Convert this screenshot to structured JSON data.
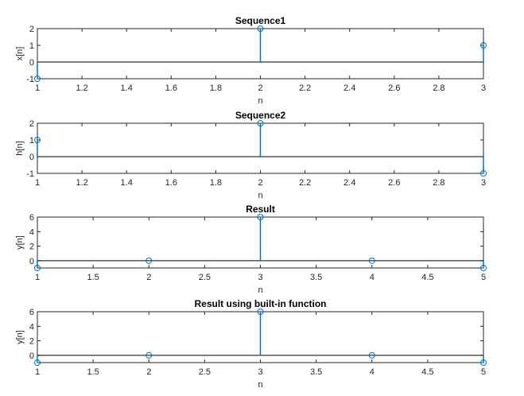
{
  "figure": {
    "background": "#ffffff",
    "stem_color": "#0072BD",
    "baseline_color": "#000000",
    "axis_color": "#262626"
  },
  "chart_data": [
    {
      "type": "stem",
      "title": "Sequence1",
      "xlabel": "n",
      "ylabel": "x[n]",
      "x": [
        1,
        2,
        3
      ],
      "values": [
        -1,
        2,
        1
      ],
      "xlim": [
        1,
        3
      ],
      "ylim": [
        -1,
        2
      ],
      "xticks": [
        1,
        1.2,
        1.4,
        1.6,
        1.8,
        2,
        2.2,
        2.4,
        2.6,
        2.8,
        3
      ],
      "xtick_labels": [
        "1",
        "1.2",
        "1.4",
        "1.6",
        "1.8",
        "2",
        "2.2",
        "2.4",
        "2.6",
        "2.8",
        "3"
      ],
      "yticks": [
        -1,
        0,
        1,
        2
      ],
      "ytick_labels": [
        "-1",
        "0",
        "1",
        "2"
      ],
      "grid": false
    },
    {
      "type": "stem",
      "title": "Sequence2",
      "xlabel": "n",
      "ylabel": "h[n]",
      "x": [
        1,
        2,
        3
      ],
      "values": [
        1,
        2,
        -1
      ],
      "xlim": [
        1,
        3
      ],
      "ylim": [
        -1,
        2
      ],
      "xticks": [
        1,
        1.2,
        1.4,
        1.6,
        1.8,
        2,
        2.2,
        2.4,
        2.6,
        2.8,
        3
      ],
      "xtick_labels": [
        "1",
        "1.2",
        "1.4",
        "1.6",
        "1.8",
        "2",
        "2.2",
        "2.4",
        "2.6",
        "2.8",
        "3"
      ],
      "yticks": [
        -1,
        0,
        1,
        2
      ],
      "ytick_labels": [
        "-1",
        "0",
        "1",
        "2"
      ],
      "grid": false
    },
    {
      "type": "stem",
      "title": "Result",
      "xlabel": "n",
      "ylabel": "y[n]",
      "x": [
        1,
        2,
        3,
        4,
        5
      ],
      "values": [
        -1,
        0,
        6,
        0,
        -1
      ],
      "xlim": [
        1,
        5
      ],
      "ylim": [
        -1,
        6
      ],
      "xticks": [
        1,
        1.5,
        2,
        2.5,
        3,
        3.5,
        4,
        4.5,
        5
      ],
      "xtick_labels": [
        "1",
        "1.5",
        "2",
        "2.5",
        "3",
        "3.5",
        "4",
        "4.5",
        "5"
      ],
      "yticks": [
        0,
        2,
        4,
        6
      ],
      "ytick_labels": [
        "0",
        "2",
        "4",
        "6"
      ],
      "grid": false
    },
    {
      "type": "stem",
      "title": "Result using built-in function",
      "xlabel": "n",
      "ylabel": "y[n]",
      "x": [
        1,
        2,
        3,
        4,
        5
      ],
      "values": [
        -1,
        0,
        6,
        0,
        -1
      ],
      "xlim": [
        1,
        5
      ],
      "ylim": [
        -1,
        6
      ],
      "xticks": [
        1,
        1.5,
        2,
        2.5,
        3,
        3.5,
        4,
        4.5,
        5
      ],
      "xtick_labels": [
        "1",
        "1.5",
        "2",
        "2.5",
        "3",
        "3.5",
        "4",
        "4.5",
        "5"
      ],
      "yticks": [
        0,
        2,
        4,
        6
      ],
      "ytick_labels": [
        "0",
        "2",
        "4",
        "6"
      ],
      "grid": false
    }
  ]
}
